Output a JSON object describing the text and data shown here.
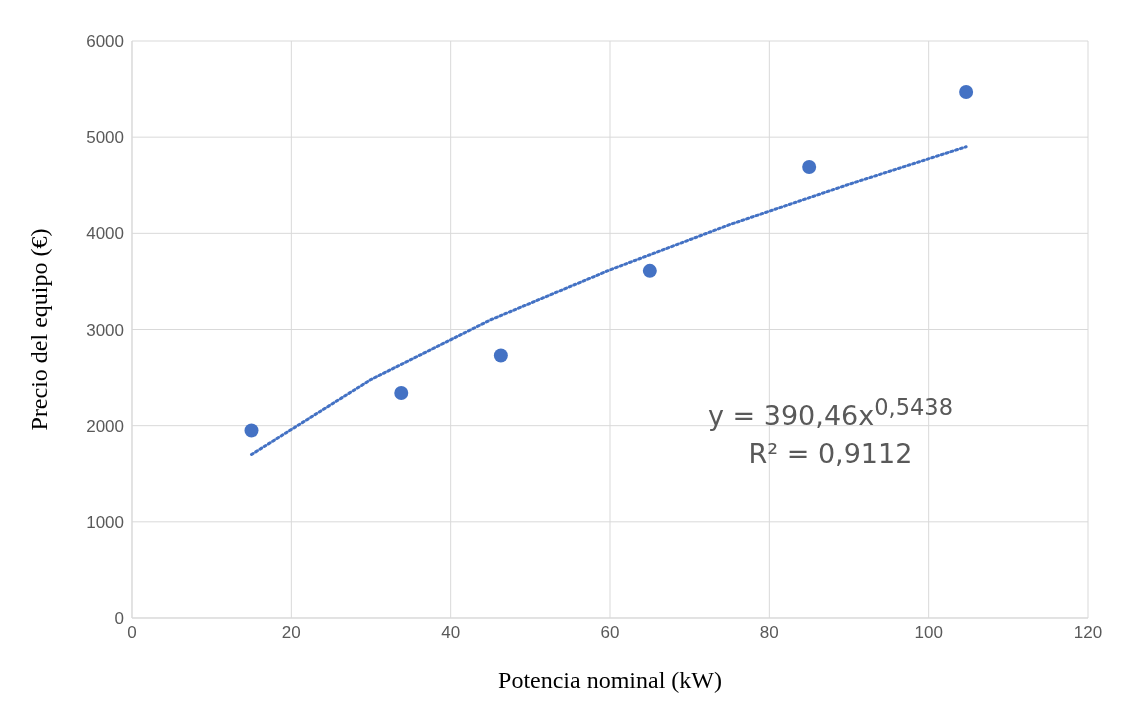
{
  "chart_data": {
    "type": "scatter",
    "xlabel": "Potencia nominal (kW)",
    "ylabel": "Precio del equipo (€)",
    "xlim": [
      0,
      120
    ],
    "xticks": [
      0,
      20,
      40,
      60,
      80,
      100,
      120
    ],
    "ylim": [
      0,
      6000
    ],
    "yticks": [
      0,
      1000,
      2000,
      3000,
      4000,
      5000,
      6000
    ],
    "grid": true,
    "marker": "circle",
    "series": [
      {
        "type": "scatter",
        "color": "#4472c4",
        "x": [
          15,
          33.8,
          46.3,
          65,
          85,
          104.7
        ],
        "values": [
          1950,
          2340,
          2730,
          3610,
          4690,
          5470
        ]
      },
      {
        "type": "line",
        "color": "#4472c4",
        "line_style": "dotted",
        "marker": "none",
        "x": [
          15,
          30,
          45,
          60,
          75,
          90,
          104.7
        ],
        "values": [
          1700,
          2480,
          3100,
          3620,
          4090,
          4510,
          4900
        ]
      }
    ],
    "annotations": [
      "y = 390,46x$^{0,5438}$",
      "R² = 0,9112"
    ]
  }
}
